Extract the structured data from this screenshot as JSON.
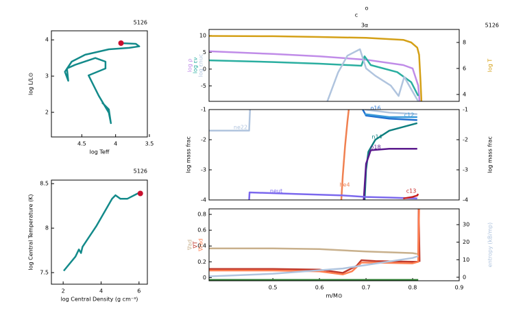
{
  "chart_data": [
    {
      "type": "line",
      "title": "5126",
      "xlabel": "log Teff",
      "ylabel": "log L/L⊙",
      "xlim": [
        4.95,
        3.53
      ],
      "ylim": [
        1.32,
        4.25
      ],
      "xticks": [
        4.5,
        4,
        3.5
      ],
      "yticks": [
        2,
        3,
        4
      ],
      "series": [
        {
          "color": "#138a8a",
          "x": [
            3.92,
            3.7,
            3.65,
            3.8,
            4.1,
            4.45,
            4.65,
            4.75,
            4.7,
            4.72,
            4.6,
            4.3,
            4.15,
            4.15,
            4.4,
            4.25,
            4.1,
            4.07,
            4.1,
            4.2
          ],
          "values": [
            3.91,
            3.89,
            3.82,
            3.78,
            3.74,
            3.59,
            3.4,
            3.12,
            2.87,
            3.21,
            3.31,
            3.5,
            3.4,
            3.21,
            3.02,
            2.46,
            1.99,
            1.7,
            2.08,
            2.27
          ]
        },
        {
          "type": "scatter",
          "color": "#c8102e",
          "x": [
            3.92
          ],
          "values": [
            3.91
          ]
        }
      ]
    },
    {
      "type": "line",
      "title": "5126",
      "xlabel": "log Central Density (g cm⁻³)",
      "ylabel": "log Central Temperature (K)",
      "xlim": [
        1.38,
        6.44
      ],
      "ylim": [
        7.37,
        8.54
      ],
      "xticks": [
        2,
        4,
        6
      ],
      "yticks": [
        8.5,
        8,
        7.5
      ],
      "series": [
        {
          "color": "#138a8a",
          "x": [
            2.03,
            2.65,
            2.83,
            2.94,
            3.02,
            3.74,
            4.58,
            4.76,
            5.02,
            5.38,
            5.93,
            6.07
          ],
          "values": [
            7.52,
            7.68,
            7.76,
            7.72,
            7.79,
            8.02,
            8.33,
            8.37,
            8.33,
            8.33,
            8.39,
            8.39
          ]
        },
        {
          "type": "scatter",
          "color": "#c8102e",
          "x": [
            6.07
          ],
          "values": [
            8.39
          ]
        }
      ]
    },
    {
      "type": "line",
      "title": "5126",
      "annotations": [
        "o",
        "c",
        "3α"
      ],
      "xlim": [
        0.363,
        0.9
      ],
      "ylim": [
        -9.6,
        11.8
      ],
      "yticks": [
        10,
        5,
        0,
        -5
      ],
      "y2lim": [
        3.47,
        9.0
      ],
      "y2ticks": [
        8,
        6,
        4
      ],
      "series": [
        {
          "name": "log ρ",
          "color": "#c08ce8",
          "x": [
            0.363,
            0.5,
            0.6,
            0.7,
            0.78,
            0.8,
            0.812,
            0.815
          ],
          "values": [
            5.3,
            4.5,
            3.8,
            2.8,
            1.2,
            0.2,
            -4.9,
            -9.6
          ]
        },
        {
          "name": "log εν",
          "color": "#2aaea0",
          "x": [
            0.363,
            0.5,
            0.6,
            0.69,
            0.697,
            0.71,
            0.767,
            0.797,
            0.812
          ],
          "values": [
            2.6,
            2.1,
            1.6,
            1.0,
            3.8,
            1.2,
            -0.9,
            -3.9,
            -8
          ]
        },
        {
          "name": "log εnuc",
          "color": "#b0c4de",
          "x": [
            0.617,
            0.64,
            0.66,
            0.687,
            0.7,
            0.72,
            0.753,
            0.77,
            0.782,
            0.797,
            0.812
          ],
          "values": [
            -9.6,
            -1,
            4,
            5.9,
            0.2,
            -2,
            -4.9,
            -8,
            -2.3,
            -6,
            -9.6
          ]
        },
        {
          "name": "log T",
          "axis": "y2",
          "color": "#d4a017",
          "x": [
            0.363,
            0.5,
            0.6,
            0.7,
            0.78,
            0.797,
            0.81,
            0.814,
            0.817,
            0.819
          ],
          "values": [
            8.5,
            8.48,
            8.42,
            8.35,
            8.2,
            8.0,
            7.6,
            7.05,
            5,
            3.47
          ]
        }
      ]
    },
    {
      "type": "line",
      "ylabel": "log mass frac",
      "xlim": [
        0.363,
        0.9
      ],
      "ylim": [
        -4,
        -1
      ],
      "yticks": [
        -1,
        -2,
        -3,
        -4
      ],
      "y2lim": [
        -4,
        -1
      ],
      "y2ticks": [
        -1,
        -2,
        -3,
        -4
      ],
      "series": [
        {
          "name": "ne22",
          "color": "#b0c4de",
          "x": [
            0.363,
            0.449,
            0.451,
            null,
            0.697,
            0.75,
            0.81
          ],
          "values": [
            -1.7,
            -1.7,
            -1.0,
            null,
            -1.0,
            -1.1,
            -1.15
          ]
        },
        {
          "name": "o16",
          "color": "#1f6fd0",
          "x": [
            0.693,
            0.7,
            0.75,
            0.81
          ],
          "values": [
            -1.0,
            -1.2,
            -1.3,
            -1.35
          ]
        },
        {
          "name": "c12",
          "color": "#3a9ad9",
          "x": [
            0.697,
            0.75,
            0.81
          ],
          "values": [
            -1.15,
            -1.25,
            -1.25
          ]
        },
        {
          "name": "n14",
          "color": "#0e7f7f",
          "x": [
            0.697,
            0.7,
            0.705,
            0.72,
            0.75,
            0.81
          ],
          "values": [
            -4,
            -3,
            -2.4,
            -2.0,
            -1.7,
            -1.45
          ]
        },
        {
          "name": "o18",
          "color": "#5a1a8c",
          "x": [
            0.695,
            0.7,
            0.71,
            0.75,
            0.81
          ],
          "values": [
            -4,
            -2.8,
            -2.35,
            -2.3,
            -2.3
          ]
        },
        {
          "name": "he4",
          "color": "#f08050",
          "x": [
            0.647,
            0.65,
            0.655,
            0.66,
            0.663
          ],
          "values": [
            -4,
            -3.2,
            -2.2,
            -1.4,
            -1.0
          ]
        },
        {
          "name": "neut",
          "color": "#7b68ee",
          "x": [
            0.449,
            0.45,
            0.55,
            0.65,
            0.7,
            0.75,
            0.81
          ],
          "values": [
            -4,
            -3.75,
            -3.8,
            -3.85,
            -3.9,
            -3.92,
            -3.95
          ]
        },
        {
          "name": "c13",
          "color": "#c82020",
          "x": [
            0.78,
            0.8,
            0.81,
            0.812
          ],
          "values": [
            -3.95,
            -3.9,
            -3.85,
            -3.8
          ]
        }
      ]
    },
    {
      "type": "line",
      "xlabel": "m/M⊙",
      "xlim": [
        0.363,
        0.9
      ],
      "xticks": [
        0.5,
        0.6,
        0.7,
        0.8,
        0.9
      ],
      "ylim": [
        -0.04,
        0.87
      ],
      "yticks": [
        0.8,
        0.6,
        0.4,
        0.2,
        0
      ],
      "y2lim": [
        -2,
        39
      ],
      "y2ticks": [
        30,
        20,
        10,
        0
      ],
      "series": [
        {
          "name": "∇ad",
          "color": "#c8b08c",
          "x": [
            0.363,
            0.5,
            0.6,
            0.7,
            0.8,
            0.81
          ],
          "values": [
            0.37,
            0.37,
            0.36,
            0.33,
            0.31,
            0.3
          ]
        },
        {
          "name": "∇T",
          "color": "#c0392b",
          "x": [
            0.363,
            0.5,
            0.6,
            0.65,
            0.68,
            0.69,
            0.72,
            0.8,
            0.812,
            0.813,
            0.815
          ],
          "values": [
            0.11,
            0.11,
            0.1,
            0.06,
            0.15,
            0.22,
            0.21,
            0.2,
            0.2,
            0.87,
            0.2
          ]
        },
        {
          "name": "∇rad",
          "color": "#ff7f50",
          "x": [
            0.363,
            0.5,
            0.6,
            0.65,
            0.67,
            0.69,
            0.72,
            0.8,
            0.812,
            0.814
          ],
          "values": [
            0.09,
            0.09,
            0.08,
            0.04,
            0.08,
            0.19,
            0.19,
            0.18,
            0.2,
            0.87
          ]
        },
        {
          "name": "entropy (kB/mp)",
          "axis": "y2",
          "color": "#b0c4de",
          "x": [
            0.363,
            0.5,
            0.6,
            0.65,
            0.7,
            0.75,
            0.8,
            0.812
          ],
          "values": [
            0.5,
            2,
            4,
            5,
            7,
            9,
            11,
            12
          ]
        },
        {
          "color": "#2e7d32",
          "x": [
            0.363,
            0.812
          ],
          "values": [
            -0.03,
            -0.03
          ]
        }
      ]
    }
  ]
}
